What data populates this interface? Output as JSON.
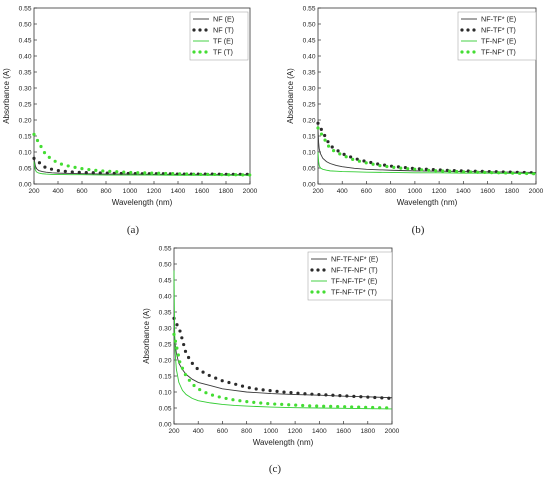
{
  "colors": {
    "black": "#3a3a3a",
    "dark": "#2b2b2b",
    "green": "#33cc33",
    "green_dot": "#44dd33"
  },
  "panels": [
    {
      "label": "(a)"
    },
    {
      "label": "(b)"
    },
    {
      "label": "(c)"
    }
  ],
  "chart_data": [
    {
      "type": "line",
      "panel": "(a)",
      "xlabel": "Wavelength (nm)",
      "ylabel": "Absorbance (A)",
      "xlim": [
        200,
        2000
      ],
      "ylim": [
        0.0,
        0.55
      ],
      "xticks": [
        "200",
        "400",
        "600",
        "800",
        "1000",
        "1200",
        "1400",
        "1600",
        "1800",
        "2000"
      ],
      "yticks": [
        "0.00",
        "0.05",
        "0.10",
        "0.15",
        "0.20",
        "0.25",
        "0.30",
        "0.35",
        "0.40",
        "0.45",
        "0.50",
        "0.55"
      ],
      "legend_position": "top-right",
      "series": [
        {
          "name": "NF (E)",
          "style": "solid",
          "color": "#3a3a3a",
          "x": [
            200,
            205,
            210,
            220,
            240,
            270,
            300,
            350,
            400,
            500,
            600,
            800,
            1000,
            1200,
            1400,
            1600,
            1800,
            2000
          ],
          "y": [
            0.09,
            0.07,
            0.058,
            0.048,
            0.042,
            0.039,
            0.037,
            0.035,
            0.034,
            0.033,
            0.032,
            0.031,
            0.031,
            0.03,
            0.03,
            0.029,
            0.029,
            0.029
          ]
        },
        {
          "name": "NF (T)",
          "style": "dot",
          "color": "#2b2b2b",
          "x": [
            200,
            300,
            400,
            500,
            600,
            700,
            800,
            900,
            1000,
            1100,
            1200,
            1300,
            1400,
            1500,
            1600,
            1700,
            1800,
            1900,
            2000
          ],
          "y": [
            0.08,
            0.05,
            0.042,
            0.038,
            0.036,
            0.035,
            0.034,
            0.033,
            0.033,
            0.032,
            0.032,
            0.032,
            0.031,
            0.031,
            0.031,
            0.031,
            0.03,
            0.03,
            0.03
          ]
        },
        {
          "name": "TF (E)",
          "style": "solid",
          "color": "#33cc33",
          "x": [
            200,
            205,
            210,
            220,
            240,
            270,
            300,
            350,
            400,
            500,
            600,
            800,
            1000,
            1200,
            1400,
            1600,
            1800,
            2000
          ],
          "y": [
            0.07,
            0.055,
            0.045,
            0.038,
            0.034,
            0.032,
            0.031,
            0.03,
            0.03,
            0.029,
            0.029,
            0.028,
            0.028,
            0.028,
            0.027,
            0.027,
            0.027,
            0.027
          ]
        },
        {
          "name": "TF (T)",
          "style": "dot",
          "color": "#44dd33",
          "x": [
            200,
            300,
            400,
            500,
            600,
            700,
            800,
            900,
            1000,
            1100,
            1200,
            1300,
            1400,
            1500,
            1600,
            1700,
            1800,
            1900,
            2000
          ],
          "y": [
            0.155,
            0.09,
            0.065,
            0.055,
            0.048,
            0.043,
            0.04,
            0.038,
            0.036,
            0.035,
            0.034,
            0.033,
            0.032,
            0.031,
            0.03,
            0.03,
            0.029,
            0.029,
            0.028
          ]
        }
      ]
    },
    {
      "type": "line",
      "panel": "(b)",
      "xlabel": "Wavelength (nm)",
      "ylabel": "Absorbance (A)",
      "xlim": [
        200,
        2000
      ],
      "ylim": [
        0.0,
        0.55
      ],
      "xticks": [
        "200",
        "400",
        "600",
        "800",
        "1000",
        "1200",
        "1400",
        "1600",
        "1800",
        "2000"
      ],
      "yticks": [
        "0.00",
        "0.05",
        "0.10",
        "0.15",
        "0.20",
        "0.25",
        "0.30",
        "0.35",
        "0.40",
        "0.45",
        "0.50",
        "0.55"
      ],
      "legend_position": "top-right",
      "series": [
        {
          "name": "NF-TF* (E)",
          "style": "solid",
          "color": "#3a3a3a",
          "x": [
            200,
            205,
            210,
            220,
            240,
            270,
            300,
            350,
            400,
            500,
            600,
            800,
            1000,
            1200,
            1400,
            1600,
            1800,
            2000
          ],
          "y": [
            0.17,
            0.13,
            0.11,
            0.095,
            0.08,
            0.07,
            0.064,
            0.058,
            0.054,
            0.049,
            0.046,
            0.043,
            0.041,
            0.04,
            0.039,
            0.038,
            0.037,
            0.036
          ]
        },
        {
          "name": "NF-TF* (T)",
          "style": "dot",
          "color": "#2b2b2b",
          "x": [
            200,
            300,
            400,
            500,
            600,
            700,
            800,
            900,
            1000,
            1100,
            1200,
            1300,
            1400,
            1500,
            1600,
            1700,
            1800,
            1900,
            2000
          ],
          "y": [
            0.19,
            0.12,
            0.095,
            0.08,
            0.07,
            0.062,
            0.056,
            0.052,
            0.048,
            0.046,
            0.044,
            0.042,
            0.041,
            0.04,
            0.039,
            0.038,
            0.037,
            0.036,
            0.035
          ]
        },
        {
          "name": "TF-NF* (E)",
          "style": "solid",
          "color": "#33cc33",
          "x": [
            200,
            205,
            210,
            220,
            240,
            270,
            300,
            350,
            400,
            500,
            600,
            800,
            1000,
            1200,
            1400,
            1600,
            1800,
            2000
          ],
          "y": [
            0.1,
            0.07,
            0.058,
            0.05,
            0.046,
            0.043,
            0.041,
            0.04,
            0.039,
            0.038,
            0.037,
            0.036,
            0.035,
            0.035,
            0.034,
            0.034,
            0.033,
            0.033
          ]
        },
        {
          "name": "TF-NF* (T)",
          "style": "dot",
          "color": "#44dd33",
          "x": [
            200,
            300,
            400,
            500,
            600,
            700,
            800,
            900,
            1000,
            1100,
            1200,
            1300,
            1400,
            1500,
            1600,
            1700,
            1800,
            1900,
            2000
          ],
          "y": [
            0.175,
            0.11,
            0.09,
            0.075,
            0.066,
            0.058,
            0.053,
            0.049,
            0.046,
            0.043,
            0.041,
            0.04,
            0.038,
            0.037,
            0.036,
            0.035,
            0.034,
            0.033,
            0.032
          ]
        }
      ]
    },
    {
      "type": "line",
      "panel": "(c)",
      "xlabel": "Wavelength (nm)",
      "ylabel": "Absorbance (A)",
      "xlim": [
        200,
        2000
      ],
      "ylim": [
        0.0,
        0.55
      ],
      "xticks": [
        "200",
        "400",
        "600",
        "800",
        "1000",
        "1200",
        "1400",
        "1600",
        "1800",
        "2000"
      ],
      "yticks": [
        "0.00",
        "0.05",
        "0.10",
        "0.15",
        "0.20",
        "0.25",
        "0.30",
        "0.35",
        "0.40",
        "0.45",
        "0.50",
        "0.55"
      ],
      "legend_position": "top-right",
      "series": [
        {
          "name": "NF-TF-NF* (E)",
          "style": "solid",
          "color": "#3a3a3a",
          "x": [
            200,
            205,
            210,
            220,
            240,
            270,
            300,
            350,
            400,
            500,
            600,
            700,
            800,
            1000,
            1200,
            1400,
            1600,
            1800,
            2000
          ],
          "y": [
            0.3,
            0.27,
            0.25,
            0.22,
            0.19,
            0.17,
            0.155,
            0.14,
            0.13,
            0.12,
            0.11,
            0.105,
            0.1,
            0.095,
            0.092,
            0.09,
            0.087,
            0.085,
            0.082
          ]
        },
        {
          "name": "NF-TF-NF* (T)",
          "style": "dot",
          "color": "#2b2b2b",
          "x": [
            200,
            250,
            300,
            350,
            400,
            450,
            500,
            600,
            700,
            800,
            900,
            1000,
            1100,
            1200,
            1300,
            1400,
            1500,
            1600,
            1700,
            1800,
            1900,
            2000
          ],
          "y": [
            0.33,
            0.29,
            0.22,
            0.19,
            0.17,
            0.16,
            0.15,
            0.135,
            0.125,
            0.115,
            0.108,
            0.104,
            0.1,
            0.097,
            0.094,
            0.092,
            0.09,
            0.088,
            0.086,
            0.084,
            0.082,
            0.08
          ]
        },
        {
          "name": "TF-NF-TF* (E)",
          "style": "solid",
          "color": "#33cc33",
          "x": [
            200,
            203,
            206,
            210,
            220,
            240,
            270,
            300,
            350,
            400,
            500,
            600,
            700,
            800,
            1000,
            1200,
            1400,
            1600,
            1800,
            2000
          ],
          "y": [
            0.48,
            0.36,
            0.28,
            0.22,
            0.17,
            0.13,
            0.105,
            0.092,
            0.08,
            0.073,
            0.066,
            0.061,
            0.058,
            0.056,
            0.053,
            0.051,
            0.05,
            0.049,
            0.048,
            0.047
          ]
        },
        {
          "name": "TF-NF-TF* (T)",
          "style": "dot",
          "color": "#44dd33",
          "x": [
            200,
            250,
            300,
            350,
            400,
            450,
            500,
            600,
            700,
            800,
            900,
            1000,
            1100,
            1200,
            1300,
            1400,
            1500,
            1600,
            1700,
            1800,
            1900,
            2000
          ],
          "y": [
            0.28,
            0.19,
            0.15,
            0.125,
            0.11,
            0.1,
            0.092,
            0.082,
            0.075,
            0.07,
            0.066,
            0.063,
            0.061,
            0.059,
            0.057,
            0.056,
            0.055,
            0.054,
            0.053,
            0.052,
            0.051,
            0.05
          ]
        }
      ]
    }
  ]
}
